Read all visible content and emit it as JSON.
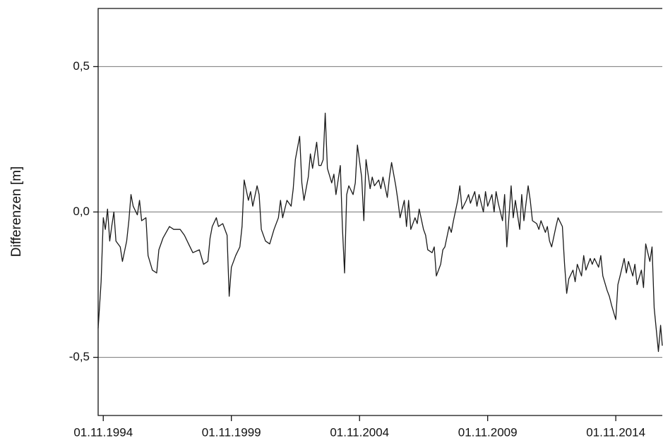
{
  "chart_data": {
    "type": "line",
    "y_label": "Differenzen [m]",
    "x": [
      "1994-08-20",
      "1994-10-01",
      "1994-11-01",
      "1994-12-01",
      "1995-01-01",
      "1995-02-01",
      "1995-03-01",
      "1995-04-01",
      "1995-05-01",
      "1995-07-01",
      "1995-08-01",
      "1995-10-01",
      "1995-11-01",
      "1995-12-01",
      "1996-01-01",
      "1996-03-01",
      "1996-04-01",
      "1996-05-01",
      "1996-07-01",
      "1996-08-01",
      "1996-10-01",
      "1996-12-01",
      "1997-01-01",
      "1997-03-01",
      "1997-06-01",
      "1997-08-01",
      "1997-11-01",
      "1998-01-01",
      "1998-03-01",
      "1998-05-01",
      "1998-08-01",
      "1998-10-01",
      "1998-12-01",
      "1999-01-01",
      "1999-02-01",
      "1999-04-01",
      "1999-05-01",
      "1999-07-01",
      "1999-09-01",
      "1999-10-01",
      "1999-11-01",
      "2000-01-01",
      "2000-03-01",
      "2000-04-01",
      "2000-05-01",
      "2000-07-01",
      "2000-08-01",
      "2000-09-01",
      "2000-11-01",
      "2000-12-01",
      "2001-01-01",
      "2001-03-01",
      "2001-05-01",
      "2001-07-01",
      "2001-09-01",
      "2001-10-01",
      "2001-11-01",
      "2002-01-01",
      "2002-03-01",
      "2002-04-01",
      "2002-05-01",
      "2002-07-01",
      "2002-08-01",
      "2002-09-01",
      "2002-11-01",
      "2002-12-01",
      "2003-01-01",
      "2003-03-01",
      "2003-04-01",
      "2003-05-01",
      "2003-06-01",
      "2003-07-01",
      "2003-08-01",
      "2003-10-01",
      "2003-11-01",
      "2003-12-01",
      "2004-02-01",
      "2004-03-01",
      "2004-04-01",
      "2004-05-01",
      "2004-06-01",
      "2004-08-01",
      "2004-09-01",
      "2004-10-01",
      "2004-12-01",
      "2005-01-01",
      "2005-02-01",
      "2005-04-01",
      "2005-05-01",
      "2005-06-01",
      "2005-08-01",
      "2005-09-01",
      "2005-10-01",
      "2005-12-01",
      "2006-01-01",
      "2006-02-01",
      "2006-04-01",
      "2006-05-01",
      "2006-06-01",
      "2006-08-01",
      "2006-09-01",
      "2006-10-01",
      "2006-11-01",
      "2007-01-01",
      "2007-02-01",
      "2007-03-01",
      "2007-05-01",
      "2007-06-01",
      "2007-07-01",
      "2007-09-01",
      "2007-10-01",
      "2007-11-01",
      "2008-01-01",
      "2008-02-01",
      "2008-03-01",
      "2008-05-01",
      "2008-06-01",
      "2008-07-01",
      "2008-09-01",
      "2008-10-01",
      "2008-11-01",
      "2009-01-01",
      "2009-02-01",
      "2009-03-01",
      "2009-05-01",
      "2009-06-01",
      "2009-07-01",
      "2009-09-01",
      "2009-10-01",
      "2009-11-01",
      "2010-01-01",
      "2010-02-01",
      "2010-03-01",
      "2010-04-01",
      "2010-06-01",
      "2010-07-01",
      "2010-08-01",
      "2010-10-01",
      "2010-11-01",
      "2010-12-01",
      "2011-02-01",
      "2011-03-01",
      "2011-04-01",
      "2011-06-01",
      "2011-07-01",
      "2011-08-01",
      "2011-10-01",
      "2011-11-01",
      "2011-12-01",
      "2012-02-01",
      "2012-03-01",
      "2012-04-01",
      "2012-05-01",
      "2012-07-01",
      "2012-08-01",
      "2012-10-01",
      "2012-11-01",
      "2012-12-01",
      "2013-01-01",
      "2013-03-01",
      "2013-04-01",
      "2013-05-01",
      "2013-07-01",
      "2013-08-01",
      "2013-09-01",
      "2013-11-01",
      "2013-12-01",
      "2014-01-01",
      "2014-03-01",
      "2014-04-01",
      "2014-05-01",
      "2014-07-01",
      "2014-08-01",
      "2014-09-01",
      "2014-11-01",
      "2014-12-01",
      "2015-01-01",
      "2015-03-01",
      "2015-04-01",
      "2015-05-01",
      "2015-07-01",
      "2015-08-01",
      "2015-09-01",
      "2015-11-01",
      "2015-12-01",
      "2016-01-01",
      "2016-03-01",
      "2016-04-01",
      "2016-05-01",
      "2016-07-01",
      "2016-08-01",
      "2016-08-25"
    ],
    "series": [
      {
        "color": "#1a1a1a",
        "values": [
          -0.4,
          -0.24,
          -0.02,
          -0.06,
          0.01,
          -0.1,
          -0.05,
          0.0,
          -0.1,
          -0.12,
          -0.17,
          -0.1,
          -0.03,
          0.06,
          0.02,
          -0.01,
          0.04,
          -0.03,
          -0.02,
          -0.15,
          -0.2,
          -0.21,
          -0.13,
          -0.09,
          -0.05,
          -0.06,
          -0.06,
          -0.08,
          -0.11,
          -0.14,
          -0.13,
          -0.18,
          -0.17,
          -0.09,
          -0.05,
          -0.02,
          -0.05,
          -0.04,
          -0.08,
          -0.29,
          -0.19,
          -0.15,
          -0.12,
          -0.05,
          0.11,
          0.04,
          0.07,
          0.02,
          0.09,
          0.06,
          -0.06,
          -0.1,
          -0.11,
          -0.06,
          -0.02,
          0.04,
          -0.02,
          0.04,
          0.02,
          0.08,
          0.18,
          0.26,
          0.1,
          0.04,
          0.12,
          0.2,
          0.15,
          0.24,
          0.16,
          0.16,
          0.18,
          0.34,
          0.15,
          0.1,
          0.13,
          0.06,
          0.16,
          -0.05,
          -0.21,
          0.06,
          0.09,
          0.06,
          0.1,
          0.23,
          0.12,
          -0.03,
          0.18,
          0.08,
          0.12,
          0.09,
          0.11,
          0.08,
          0.12,
          0.05,
          0.12,
          0.17,
          0.09,
          0.04,
          -0.02,
          0.04,
          -0.05,
          0.04,
          -0.06,
          -0.02,
          -0.04,
          0.01,
          -0.06,
          -0.08,
          -0.13,
          -0.14,
          -0.12,
          -0.22,
          -0.18,
          -0.13,
          -0.12,
          -0.05,
          -0.07,
          -0.03,
          0.04,
          0.09,
          0.01,
          0.04,
          0.06,
          0.03,
          0.07,
          0.02,
          0.06,
          0.0,
          0.07,
          0.02,
          0.06,
          0.0,
          0.07,
          0.03,
          -0.03,
          0.06,
          -0.12,
          0.09,
          -0.02,
          0.04,
          -0.06,
          0.06,
          -0.03,
          0.09,
          0.04,
          -0.03,
          -0.04,
          -0.06,
          -0.03,
          -0.07,
          -0.05,
          -0.1,
          -0.12,
          -0.05,
          -0.02,
          -0.05,
          -0.18,
          -0.28,
          -0.23,
          -0.2,
          -0.24,
          -0.18,
          -0.22,
          -0.15,
          -0.2,
          -0.16,
          -0.18,
          -0.16,
          -0.19,
          -0.15,
          -0.22,
          -0.27,
          -0.29,
          -0.32,
          -0.37,
          -0.25,
          -0.22,
          -0.16,
          -0.21,
          -0.17,
          -0.22,
          -0.18,
          -0.25,
          -0.2,
          -0.26,
          -0.11,
          -0.17,
          -0.12,
          -0.33,
          -0.48,
          -0.39,
          -0.46
        ]
      }
    ],
    "xlim": [
      "1994-08-20",
      "2016-08-25"
    ],
    "xticks": [
      {
        "value": "1994-11-01",
        "label": "01.11.1994"
      },
      {
        "value": "1999-11-01",
        "label": "01.11.1999"
      },
      {
        "value": "2004-11-01",
        "label": "01.11.2004"
      },
      {
        "value": "2009-11-01",
        "label": "01.11.2009"
      },
      {
        "value": "2014-11-01",
        "label": "01.11.2014"
      }
    ],
    "ylim": [
      -0.7,
      0.7
    ],
    "yticks": [
      {
        "value": -0.5,
        "label": "-0,5"
      },
      {
        "value": 0,
        "label": "0,0"
      },
      {
        "value": 0.5,
        "label": "0,5"
      }
    ],
    "grid": true
  }
}
